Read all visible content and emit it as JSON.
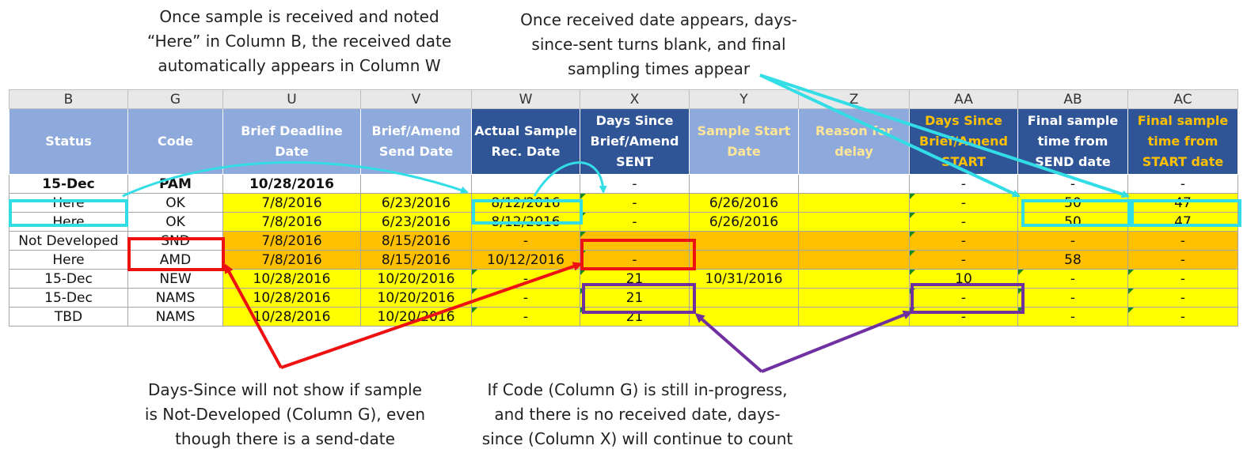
{
  "annotations": {
    "top_left": [
      "Once sample is received and noted",
      "“Here” in Column B, the received date",
      "automatically appears in Column W"
    ],
    "top_right": [
      "Once received date appears, days-",
      "since-sent turns blank, and final",
      "sampling times appear"
    ],
    "bottom_left": [
      "Days-Since will not show if sample",
      "is Not-Developed (Column G), even",
      "though there is a send-date"
    ],
    "bottom_right": [
      "If Code (Column G) is still in-progress,",
      "and there is no received date, days-",
      "since (Column X) will continue to count"
    ]
  },
  "columns": [
    "B",
    "G",
    "U",
    "V",
    "W",
    "X",
    "Y",
    "Z",
    "AA",
    "AB",
    "AC"
  ],
  "headers": [
    [
      "Status"
    ],
    [
      "Code"
    ],
    [
      "Brief Deadline",
      "Date"
    ],
    [
      "Brief/Amend",
      "Send Date"
    ],
    [
      "Actual Sample",
      "Rec. Date"
    ],
    [
      "Days Since",
      "Brief/Amend",
      "SENT"
    ],
    [
      "Sample Start",
      "Date"
    ],
    [
      "Reason for",
      "delay"
    ],
    [
      "Days Since",
      "Brief/Amend",
      "START"
    ],
    [
      "Final sample",
      "time from",
      "SEND date"
    ],
    [
      "Final sample",
      "time from",
      "START date"
    ]
  ],
  "rows": [
    [
      "15-Dec",
      "PAM",
      "10/28/2016",
      "",
      "",
      "-",
      "",
      "",
      "-",
      "-",
      "-"
    ],
    [
      "Here",
      "OK",
      "7/8/2016",
      "6/23/2016",
      "8/12/2016",
      "-",
      "6/26/2016",
      "",
      "-",
      "50",
      "47"
    ],
    [
      "Here",
      "OK",
      "7/8/2016",
      "6/23/2016",
      "8/12/2016",
      "-",
      "6/26/2016",
      "",
      "-",
      "50",
      "47"
    ],
    [
      "Not Developed",
      "SND",
      "7/8/2016",
      "8/15/2016",
      "-",
      "-",
      "",
      "",
      "-",
      "-",
      "-"
    ],
    [
      "Here",
      "AMD",
      "7/8/2016",
      "8/15/2016",
      "10/12/2016",
      "-",
      "",
      "",
      "-",
      "58",
      "-"
    ],
    [
      "15-Dec",
      "NEW",
      "10/28/2016",
      "10/20/2016",
      "-",
      "21",
      "10/31/2016",
      "",
      "10",
      "-",
      "-"
    ],
    [
      "15-Dec",
      "NAMS",
      "10/28/2016",
      "10/20/2016",
      "-",
      "21",
      "",
      "",
      "-",
      "-",
      "-"
    ],
    [
      "TBD",
      "NAMS",
      "10/28/2016",
      "10/20/2016",
      "-",
      "21",
      "",
      "",
      "-",
      "-",
      "-"
    ]
  ],
  "colors": {
    "cyan": "#33dde6",
    "red": "#ee1111",
    "purple": "#7030a0",
    "yellow": "#ffff00",
    "orange": "#ffc000"
  }
}
